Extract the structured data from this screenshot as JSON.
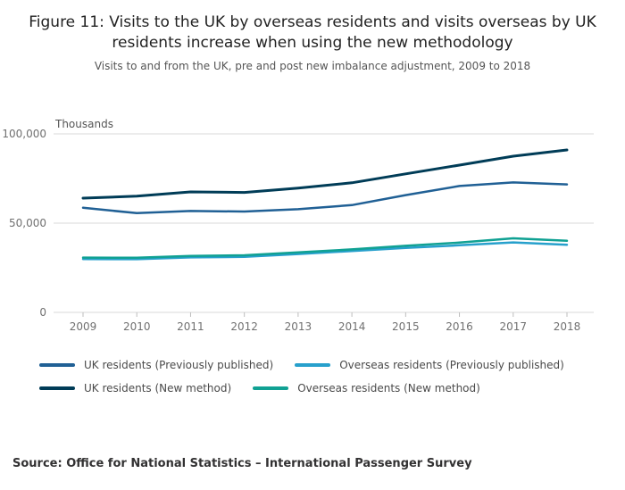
{
  "chart_data": {
    "type": "line",
    "title": "Figure 11: Visits to the UK by overseas residents and visits overseas by UK residents increase when using the new methodology",
    "subtitle": "Visits to and from the UK, pre and post new imbalance adjustment, 2009 to 2018",
    "ylabel": "Thousands",
    "xlabel": "",
    "x": [
      2009,
      2010,
      2011,
      2012,
      2013,
      2014,
      2015,
      2016,
      2017,
      2018
    ],
    "ylim": [
      0,
      100000
    ],
    "yticks": [
      {
        "value": 0,
        "label": "0"
      },
      {
        "value": 50000,
        "label": "50,000"
      },
      {
        "value": 100000,
        "label": "100,000"
      }
    ],
    "grid": true,
    "legend_position": "bottom",
    "series": [
      {
        "id": "uk-residents-previously-published",
        "name": "UK residents (Previously published)",
        "color": "#206095",
        "width": 2.5,
        "values": [
          58600,
          55600,
          56800,
          56500,
          57800,
          60100,
          65700,
          70800,
          72800,
          71700
        ]
      },
      {
        "id": "overseas-residents-previously-published",
        "name": "Overseas residents (Previously published)",
        "color": "#27A0CC",
        "width": 2.5,
        "values": [
          29900,
          29800,
          30800,
          31100,
          32700,
          34400,
          36100,
          37600,
          39200,
          37900
        ]
      },
      {
        "id": "uk-residents-new-method",
        "name": "UK residents (New method)",
        "color": "#003C57",
        "width": 3,
        "values": [
          64000,
          65100,
          67500,
          67200,
          69600,
          72600,
          77600,
          82500,
          87500,
          91000
        ]
      },
      {
        "id": "overseas-residents-new-method",
        "name": "Overseas residents (New method)",
        "color": "#10A193",
        "width": 2.5,
        "values": [
          30700,
          30600,
          31600,
          32000,
          33600,
          35300,
          37300,
          39100,
          41500,
          40100
        ]
      }
    ]
  },
  "footer": {
    "source": "Source: Office for National Statistics – International Passenger Survey"
  },
  "style": {
    "gridline_color": "#d9d9d9",
    "tick_color": "#bdbdbd",
    "axis_label_color": "#707070"
  }
}
